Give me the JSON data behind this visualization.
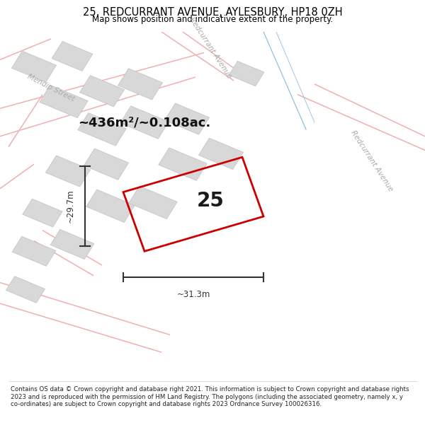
{
  "title": "25, REDCURRANT AVENUE, AYLESBURY, HP18 0ZH",
  "subtitle": "Map shows position and indicative extent of the property.",
  "footer": "Contains OS data © Crown copyright and database right 2021. This information is subject to Crown copyright and database rights 2023 and is reproduced with the permission of HM Land Registry. The polygons (including the associated geometry, namely x, y co-ordinates) are subject to Crown copyright and database rights 2023 Ordnance Survey 100026316.",
  "plot_color": "#cc0000",
  "plot_label": "25",
  "area_text": "~436m²/~0.108ac.",
  "width_text": "~31.3m",
  "height_text": "~29.7m",
  "street_label_mendip": "Mendip Street",
  "street_label_rc_top": "Redcurrant Avenue",
  "street_label_rc_bot": "Redcurrant Avenue",
  "road_color": "#f0b0b0",
  "road_color2": "#e8c0c0",
  "building_color": "#d8d8d8",
  "building_edge": "#c0c0c0",
  "map_bg": "#f8f8f8",
  "dim_color": "#333333",
  "label_color": "#aaaaaa",
  "text_color": "#111111"
}
